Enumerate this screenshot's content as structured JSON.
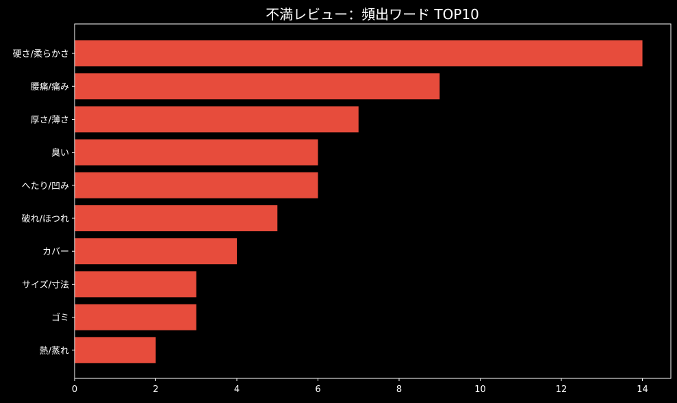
{
  "chart_data": {
    "type": "bar",
    "orientation": "horizontal",
    "title": "不満レビュー：頻出ワード TOP10",
    "xlabel": "",
    "ylabel": "",
    "categories": [
      "硬さ/柔らかさ",
      "腰痛/痛み",
      "厚さ/薄さ",
      "臭い",
      "へたり/凹み",
      "破れ/ほつれ",
      "カバー",
      "サイズ/寸法",
      "ゴミ",
      "熱/蒸れ"
    ],
    "values": [
      14,
      9,
      7,
      6,
      6,
      5,
      4,
      3,
      3,
      2
    ],
    "xlim": [
      0,
      14.7
    ],
    "xticks": [
      0,
      2,
      4,
      6,
      8,
      10,
      12,
      14
    ],
    "grid": false,
    "legend": "none",
    "colors": {
      "background": "#000000",
      "bar": "#e74c3c",
      "axis": "#ffffff",
      "text": "#ffffff"
    }
  }
}
